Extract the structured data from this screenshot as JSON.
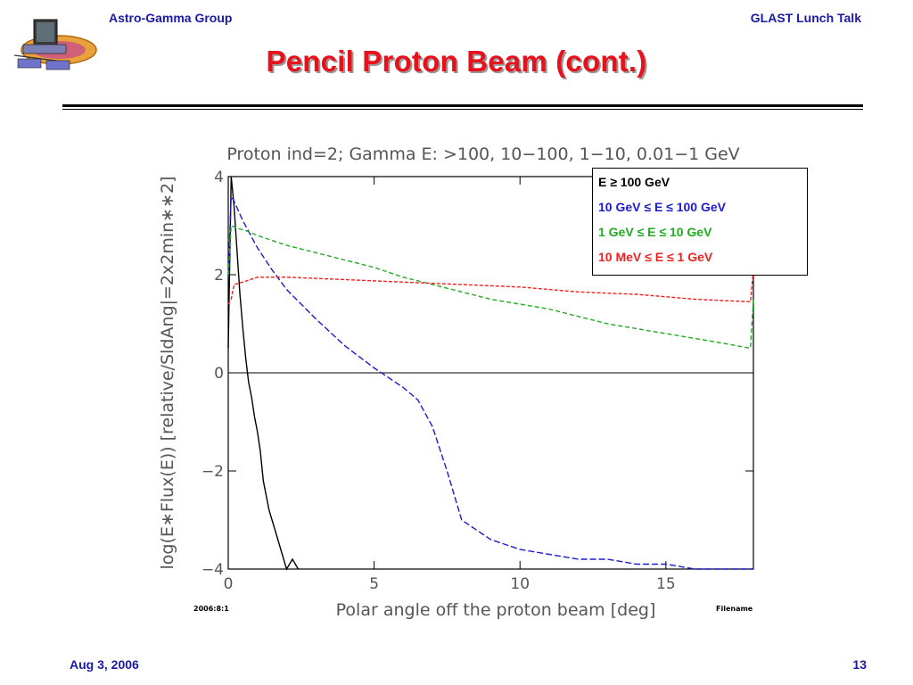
{
  "header": {
    "left": "Astro-Gamma Group",
    "right": "GLAST Lunch Talk"
  },
  "slide": {
    "title": "Pencil Proton Beam (cont.)"
  },
  "footer": {
    "date": "Aug 3, 2006",
    "page": "13"
  },
  "chart_data": {
    "type": "line",
    "title": "Proton ind=2; Gamma E: >100, 10−100, 1−10, 0.01−1 GeV",
    "xlabel": "Polar angle off the proton beam [deg]",
    "ylabel": "log(E∗Flux(E)) [relative/SldAng|=2x2min∗∗2]",
    "xlim": [
      0,
      18
    ],
    "ylim": [
      -4,
      4
    ],
    "x_ticks": [
      0,
      5,
      10,
      15
    ],
    "y_ticks": [
      4,
      2,
      0,
      -2,
      -4
    ],
    "x_tick_labels": [
      "0",
      "5",
      "10",
      "15"
    ],
    "y_tick_labels": [
      "4",
      "2",
      "0",
      "−2",
      "−4"
    ],
    "corner_left": "2006:8:1",
    "corner_right": "Filename",
    "legend_position": "top-right",
    "series": [
      {
        "name": "E ≥ 100 GeV",
        "color": "#000000",
        "dash": "none",
        "x": [
          0,
          0.1,
          0.2,
          0.3,
          0.4,
          0.5,
          0.6,
          0.7,
          0.8,
          0.9,
          1.0,
          1.1,
          1.2,
          1.4,
          1.6,
          1.8,
          2.0,
          2.2,
          2.4
        ],
        "y": [
          0.5,
          4.0,
          3.4,
          2.5,
          1.6,
          0.9,
          0.3,
          -0.2,
          -0.5,
          -0.9,
          -1.2,
          -1.6,
          -2.2,
          -2.8,
          -3.2,
          -3.6,
          -4.0,
          -3.8,
          -4.0
        ]
      },
      {
        "name": "10 GeV ≤ E ≤ 100 GeV",
        "color": "#1c1ccc",
        "dash": "7 3",
        "x": [
          0,
          0.1,
          0.2,
          0.5,
          1,
          1.5,
          2,
          3,
          4,
          5,
          6,
          6.5,
          7,
          7.5,
          8,
          9,
          10,
          11,
          12,
          13,
          14,
          15,
          16,
          17,
          18
        ],
        "y": [
          2.0,
          3.6,
          3.5,
          3.1,
          2.55,
          2.1,
          1.7,
          1.1,
          0.55,
          0.1,
          -0.3,
          -0.55,
          -1.1,
          -2.0,
          -3.0,
          -3.4,
          -3.6,
          -3.7,
          -3.8,
          -3.8,
          -3.9,
          -3.9,
          -4.0,
          -4.0,
          -4.0
        ]
      },
      {
        "name": "1 GeV ≤ E ≤ 10 GeV",
        "color": "#22aa22",
        "dash": "5 3",
        "x": [
          0,
          0.1,
          0.3,
          0.6,
          1,
          2,
          3,
          4,
          5,
          6,
          7,
          8,
          9,
          10,
          11,
          12,
          13,
          14,
          15,
          16,
          17,
          17.9,
          18
        ],
        "y": [
          2.0,
          3.0,
          2.95,
          2.9,
          2.8,
          2.6,
          2.45,
          2.3,
          2.15,
          1.95,
          1.8,
          1.65,
          1.5,
          1.4,
          1.3,
          1.15,
          1.0,
          0.9,
          0.8,
          0.7,
          0.6,
          0.5,
          1.5
        ]
      },
      {
        "name": "10 MeV ≤ E ≤ 1 GeV",
        "color": "#ee2222",
        "dash": "4 2",
        "x": [
          0,
          0.1,
          0.2,
          0.5,
          1,
          2,
          4,
          6,
          8,
          10,
          12,
          14,
          16,
          17.9,
          18
        ],
        "y": [
          1.4,
          1.5,
          1.8,
          1.85,
          1.95,
          1.95,
          1.9,
          1.85,
          1.8,
          1.75,
          1.65,
          1.6,
          1.5,
          1.45,
          2.1
        ]
      }
    ]
  }
}
